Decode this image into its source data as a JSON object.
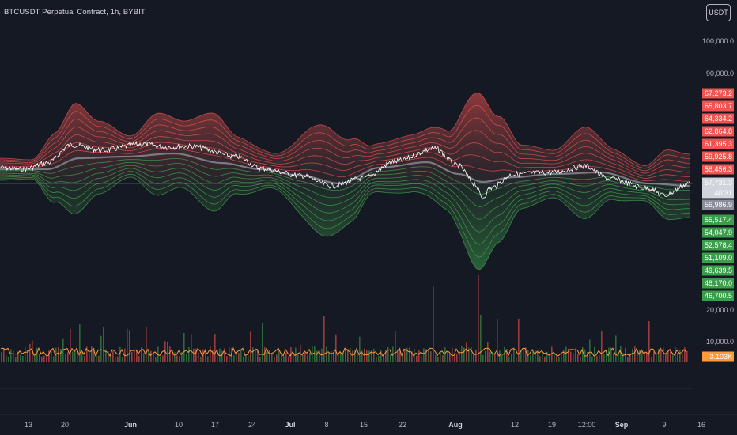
{
  "header": {
    "title": "BTCUSDT Perpetual Contract, 1h, BYBIT",
    "currency_button": "USDT"
  },
  "colors": {
    "background": "#151924",
    "upper_band": "#f05350",
    "lower_band": "#3c9e4a",
    "price_line": "#ffffff",
    "basis_line": "#8c8f99",
    "volume_ma": "#ff9a3c"
  },
  "chart_data": [
    {
      "type": "line",
      "series": [
        {
          "name": "",
          "values": []
        }
      ],
      "y_axis_ticks": [
        "100,000.0",
        "90,000.0"
      ],
      "current_price": "57,731.3",
      "countdown": "40:31",
      "band_labels_upper": [
        "67,273.2",
        "65,803.7",
        "64,334.2",
        "62,864.8",
        "61,395.3",
        "59,925.8",
        "58,456.3"
      ],
      "basis_label": "56,986.9",
      "band_labels_lower": [
        "55,517.4",
        "54,047.9",
        "52,578.4",
        "51,109.0",
        "49,639.5",
        "48,170.0",
        "46,700.5"
      ]
    },
    {
      "type": "bar",
      "y_axis_ticks": [
        "20,000.0",
        "10,000.0"
      ],
      "volume_label": "3.103K"
    }
  ],
  "x_axis": {
    "ticks": [
      {
        "label": "13",
        "bold": false
      },
      {
        "label": "20",
        "bold": false
      },
      {
        "label": "Jun",
        "bold": true
      },
      {
        "label": "10",
        "bold": false
      },
      {
        "label": "17",
        "bold": false
      },
      {
        "label": "24",
        "bold": false
      },
      {
        "label": "Jul",
        "bold": true
      },
      {
        "label": "8",
        "bold": false
      },
      {
        "label": "15",
        "bold": false
      },
      {
        "label": "22",
        "bold": false
      },
      {
        "label": "Aug",
        "bold": true
      },
      {
        "label": "12",
        "bold": false
      },
      {
        "label": "19",
        "bold": false
      },
      {
        "label": "12:00",
        "bold": false
      },
      {
        "label": "Sep",
        "bold": true
      },
      {
        "label": "9",
        "bold": false
      },
      {
        "label": "16",
        "bold": false
      }
    ]
  }
}
